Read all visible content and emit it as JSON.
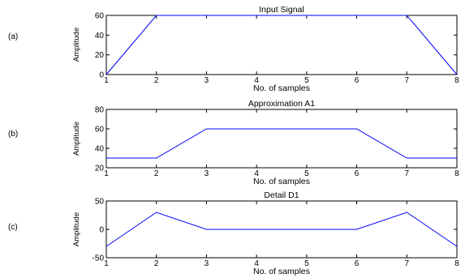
{
  "chart_data": [
    {
      "type": "line",
      "panel": "(a)",
      "title": "Input Signal",
      "xlabel": "No. of samples",
      "ylabel": "Amplitude",
      "xlim": [
        1,
        8
      ],
      "ylim": [
        0,
        60
      ],
      "xticks": [
        1,
        2,
        3,
        4,
        5,
        6,
        7,
        8
      ],
      "yticks": [
        0,
        20,
        40,
        60
      ],
      "grid": false,
      "series": [
        {
          "x": [
            1,
            2,
            3,
            4,
            5,
            6,
            7,
            8
          ],
          "values": [
            0,
            60,
            60,
            60,
            60,
            60,
            60,
            0
          ],
          "color": "#0000ff"
        }
      ]
    },
    {
      "type": "line",
      "panel": "(b)",
      "title": "Approximation A1",
      "xlabel": "No. of samples",
      "ylabel": "Amplitude",
      "xlim": [
        1,
        8
      ],
      "ylim": [
        20,
        80
      ],
      "xticks": [
        1,
        2,
        3,
        4,
        5,
        6,
        7,
        8
      ],
      "yticks": [
        20,
        40,
        60,
        80
      ],
      "grid": false,
      "series": [
        {
          "x": [
            1,
            2,
            3,
            4,
            5,
            6,
            7,
            8
          ],
          "values": [
            30,
            30,
            60,
            60,
            60,
            60,
            30,
            30
          ],
          "color": "#0000ff"
        }
      ]
    },
    {
      "type": "line",
      "panel": "(c)",
      "title": "Detail D1",
      "xlabel": "No. of samples",
      "ylabel": "Amplitude",
      "xlim": [
        1,
        8
      ],
      "ylim": [
        -50,
        50
      ],
      "xticks": [
        1,
        2,
        3,
        4,
        5,
        6,
        7,
        8
      ],
      "yticks": [
        -50,
        0,
        50
      ],
      "grid": false,
      "series": [
        {
          "x": [
            1,
            2,
            3,
            4,
            5,
            6,
            7,
            8
          ],
          "values": [
            -30,
            30,
            0,
            0,
            0,
            0,
            30,
            -30
          ],
          "color": "#0000ff"
        }
      ]
    }
  ]
}
